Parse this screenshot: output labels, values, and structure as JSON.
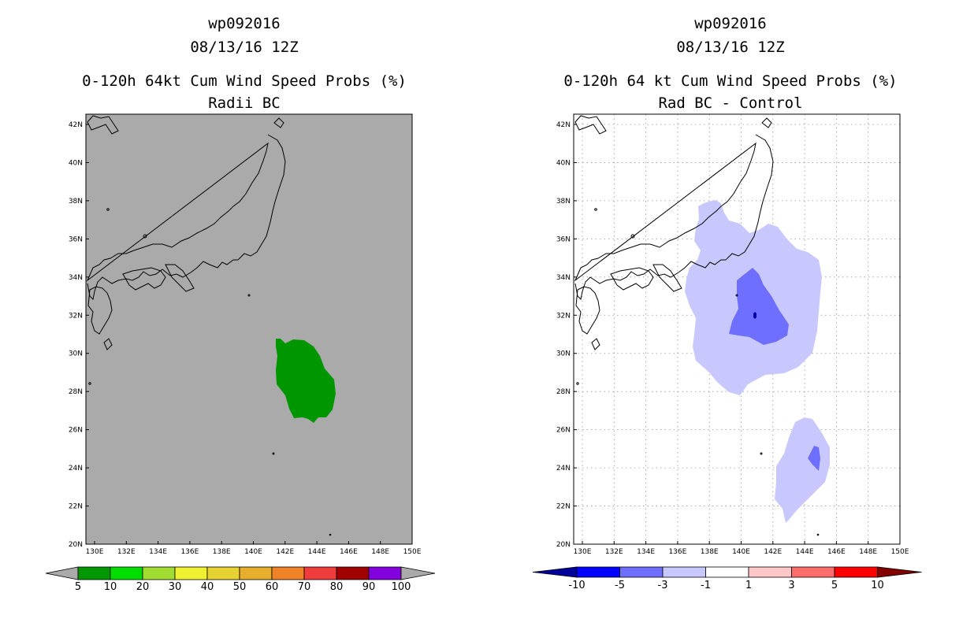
{
  "left_panel": {
    "storm_id": "wp092016",
    "datetime": "08/13/16 12Z",
    "title": "0-120h 64kt Cum Wind Speed Probs (%)",
    "subtitle": "Radii BC",
    "background_color": "#aaaaaa",
    "lat_labels": [
      "42N",
      "40N",
      "38N",
      "36N",
      "34N",
      "32N",
      "30N",
      "28N",
      "26N",
      "24N",
      "22N",
      "20N"
    ],
    "lon_labels": [
      "130E",
      "132E",
      "134E",
      "136E",
      "138E",
      "140E",
      "142E",
      "144E",
      "146E",
      "148E",
      "150E"
    ],
    "colorbar": {
      "colors": [
        "#009600",
        "#00dc00",
        "#a0dc32",
        "#f0f032",
        "#e6d232",
        "#e6af2d",
        "#f08228",
        "#f03c3c",
        "#a00000",
        "#8200dc"
      ],
      "labels": [
        "5",
        "10",
        "20",
        "30",
        "40",
        "50",
        "60",
        "70",
        "80",
        "90",
        "100"
      ],
      "end_color": "#aaaaaa"
    },
    "probability_area_color": "#009600"
  },
  "right_panel": {
    "storm_id": "wp092016",
    "datetime": "08/13/16 12Z",
    "title": "0-120h 64 kt Cum Wind Speed Probs (%)",
    "subtitle": "Rad BC - Control",
    "lat_labels": [
      "42N",
      "40N",
      "38N",
      "36N",
      "34N",
      "32N",
      "30N",
      "28N",
      "26N",
      "24N",
      "22N",
      "20N"
    ],
    "lon_labels": [
      "130E",
      "132E",
      "134E",
      "136E",
      "138E",
      "140E",
      "142E",
      "144E",
      "146E",
      "148E",
      "150E"
    ],
    "colorbar": {
      "colors": [
        "#0000ff",
        "#6e6eff",
        "#c8c8ff",
        "#ffffff",
        "#ffc8c8",
        "#ff6e6e",
        "#ff0000"
      ],
      "labels": [
        "-10",
        "-5",
        "-3",
        "-1",
        "1",
        "3",
        "5",
        "10"
      ],
      "low_end_color": "#00009b",
      "high_end_color": "#820000"
    },
    "difference_colors": {
      "light": "#c8c8ff",
      "medium": "#6e6eff",
      "dark": "#0000aa"
    }
  }
}
